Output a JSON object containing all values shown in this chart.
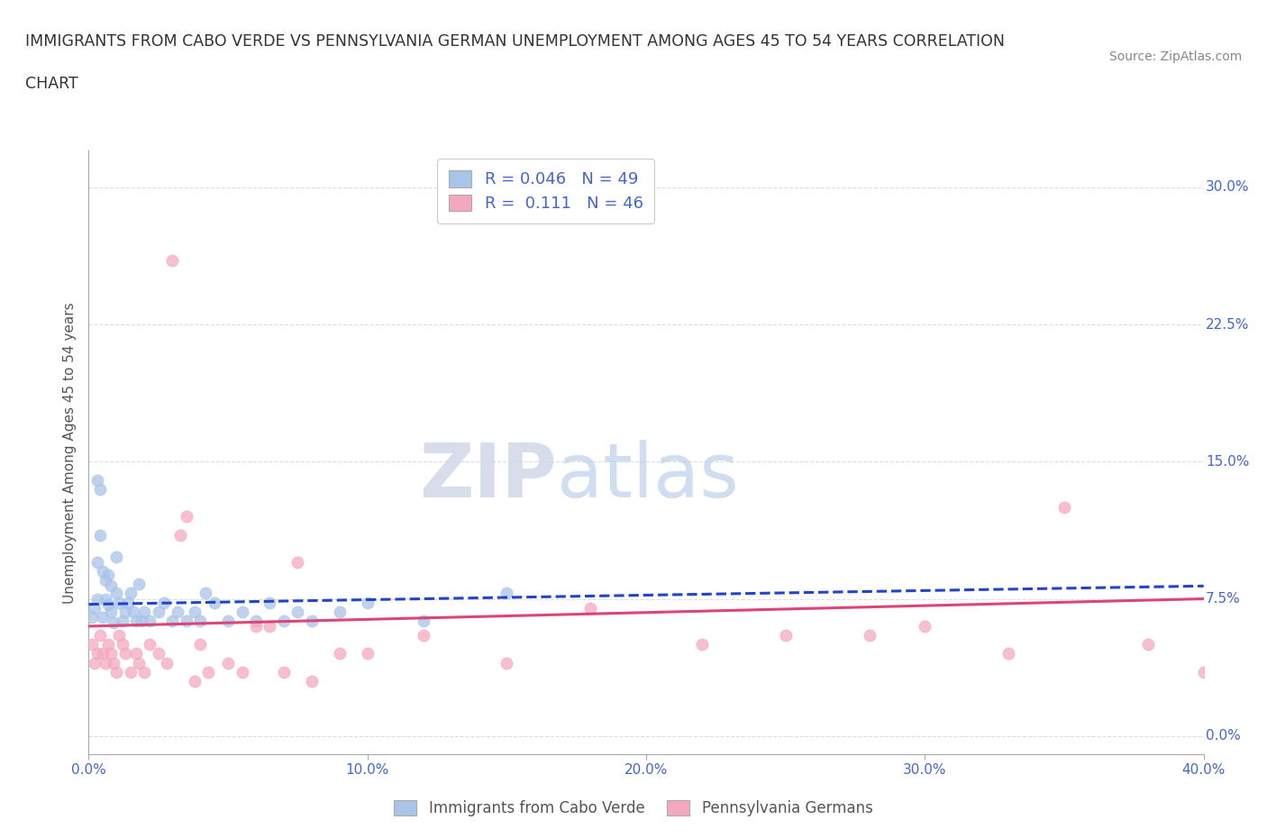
{
  "title_line1": "IMMIGRANTS FROM CABO VERDE VS PENNSYLVANIA GERMAN UNEMPLOYMENT AMONG AGES 45 TO 54 YEARS CORRELATION",
  "title_line2": "CHART",
  "source": "Source: ZipAtlas.com",
  "ylabel": "Unemployment Among Ages 45 to 54 years",
  "xlim": [
    0.0,
    0.4
  ],
  "ylim": [
    -0.01,
    0.32
  ],
  "yticks": [
    0.0,
    0.075,
    0.15,
    0.225,
    0.3
  ],
  "ytick_labels": [
    "0.0%",
    "7.5%",
    "15.0%",
    "22.5%",
    "30.0%"
  ],
  "xticks": [
    0.0,
    0.1,
    0.2,
    0.3,
    0.4
  ],
  "xtick_labels": [
    "0.0%",
    "10.0%",
    "20.0%",
    "30.0%",
    "40.0%"
  ],
  "series1_color": "#a8c4e8",
  "series2_color": "#f4a8c0",
  "trendline1_color": "#2244cc",
  "trendline2_color": "#dd4477",
  "background_color": "#ffffff",
  "grid_color": "#dddddd",
  "watermark_zip": "ZIP",
  "watermark_atlas": "atlas",
  "legend_label1": "R = 0.046   N = 49",
  "legend_label2": "R =  0.111   N = 46",
  "bottom_label1": "Immigrants from Cabo Verde",
  "bottom_label2": "Pennsylvania Germans",
  "series1_x": [
    0.001,
    0.002,
    0.003,
    0.003,
    0.004,
    0.005,
    0.005,
    0.006,
    0.006,
    0.007,
    0.007,
    0.008,
    0.008,
    0.009,
    0.01,
    0.01,
    0.011,
    0.012,
    0.013,
    0.014,
    0.015,
    0.016,
    0.017,
    0.018,
    0.019,
    0.02,
    0.022,
    0.025,
    0.027,
    0.03,
    0.032,
    0.035,
    0.038,
    0.04,
    0.042,
    0.045,
    0.05,
    0.055,
    0.06,
    0.065,
    0.07,
    0.075,
    0.08,
    0.09,
    0.1,
    0.12,
    0.15,
    0.003,
    0.004
  ],
  "series1_y": [
    0.065,
    0.07,
    0.095,
    0.075,
    0.11,
    0.09,
    0.065,
    0.085,
    0.075,
    0.072,
    0.088,
    0.082,
    0.068,
    0.062,
    0.098,
    0.078,
    0.073,
    0.063,
    0.068,
    0.073,
    0.078,
    0.068,
    0.063,
    0.083,
    0.063,
    0.068,
    0.063,
    0.068,
    0.073,
    0.063,
    0.068,
    0.063,
    0.068,
    0.063,
    0.078,
    0.073,
    0.063,
    0.068,
    0.063,
    0.073,
    0.063,
    0.068,
    0.063,
    0.068,
    0.073,
    0.063,
    0.078,
    0.14,
    0.135
  ],
  "series2_x": [
    0.001,
    0.002,
    0.003,
    0.004,
    0.005,
    0.006,
    0.007,
    0.008,
    0.009,
    0.01,
    0.011,
    0.012,
    0.013,
    0.015,
    0.017,
    0.018,
    0.02,
    0.022,
    0.025,
    0.028,
    0.03,
    0.033,
    0.035,
    0.038,
    0.04,
    0.043,
    0.05,
    0.055,
    0.06,
    0.065,
    0.07,
    0.075,
    0.08,
    0.09,
    0.1,
    0.12,
    0.15,
    0.18,
    0.22,
    0.25,
    0.28,
    0.3,
    0.33,
    0.35,
    0.38,
    0.4
  ],
  "series2_y": [
    0.05,
    0.04,
    0.045,
    0.055,
    0.045,
    0.04,
    0.05,
    0.045,
    0.04,
    0.035,
    0.055,
    0.05,
    0.045,
    0.035,
    0.045,
    0.04,
    0.035,
    0.05,
    0.045,
    0.04,
    0.26,
    0.11,
    0.12,
    0.03,
    0.05,
    0.035,
    0.04,
    0.035,
    0.06,
    0.06,
    0.035,
    0.095,
    0.03,
    0.045,
    0.045,
    0.055,
    0.04,
    0.07,
    0.05,
    0.055,
    0.055,
    0.06,
    0.045,
    0.125,
    0.05,
    0.035
  ],
  "trendline1_start_y": 0.072,
  "trendline1_end_y": 0.082,
  "trendline2_start_y": 0.06,
  "trendline2_end_y": 0.075
}
